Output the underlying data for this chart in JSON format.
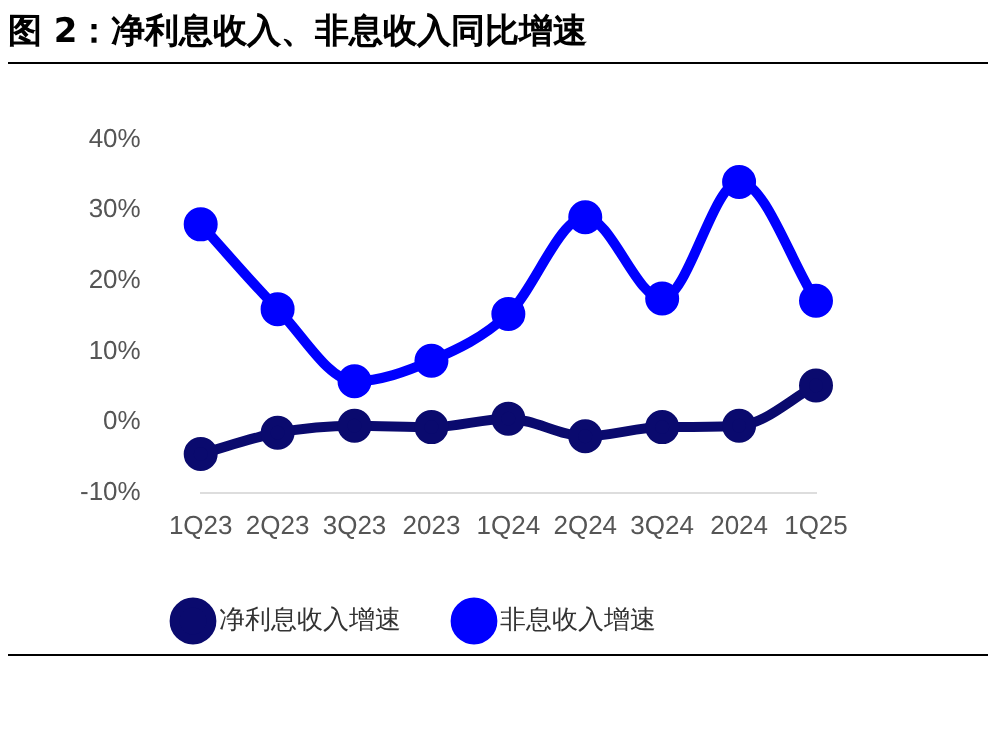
{
  "chart_data": {
    "type": "line",
    "title": "图 2：净利息收入、非息收入同比增速",
    "categories": [
      "1Q23",
      "2Q23",
      "3Q23",
      "2023",
      "1Q24",
      "2Q24",
      "3Q24",
      "2024",
      "1Q25"
    ],
    "series": [
      {
        "name": "净利息收入增速",
        "color": "#0a0a6e",
        "values": [
          -4.5,
          -1.5,
          -0.5,
          -0.7,
          0.5,
          -2,
          -0.7,
          -0.5,
          5.2
        ]
      },
      {
        "name": "非息收入增速",
        "color": "#0000ff",
        "values": [
          28,
          16,
          5.8,
          8.7,
          15.3,
          29,
          17.5,
          34,
          17.2
        ]
      }
    ],
    "ylim": [
      -10,
      40
    ],
    "yticks": [
      {
        "value": -10,
        "label": "-10%"
      },
      {
        "value": 0,
        "label": "0%"
      },
      {
        "value": 10,
        "label": "10%"
      },
      {
        "value": 20,
        "label": "20%"
      },
      {
        "value": 30,
        "label": "30%"
      },
      {
        "value": 40,
        "label": "40%"
      }
    ],
    "grid": false,
    "legend": "bottom",
    "marker": "circle",
    "line_style": "solid"
  }
}
